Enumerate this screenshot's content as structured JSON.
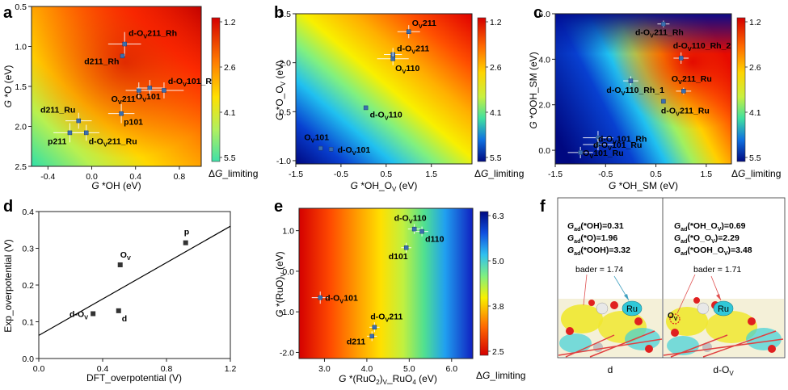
{
  "chart_data": [
    {
      "id": "a",
      "type": "scatter",
      "panel_label": "a",
      "xlabel": "G *OH (eV)",
      "ylabel": "G *O (eV)",
      "xlim": [
        -0.55,
        1.0
      ],
      "ylim": [
        2.5,
        0.5
      ],
      "xticks": [
        -0.4,
        0.0,
        0.4,
        0.8
      ],
      "xticklabels": [
        "-0.4",
        "0.0",
        "0.4",
        "0.8"
      ],
      "yticks": [
        0.5,
        1.0,
        1.5,
        2.0,
        2.5
      ],
      "yticklabels": [
        "0.5",
        "1.0",
        "1.5",
        "2.0",
        "2.5"
      ],
      "points": [
        {
          "label": "d-OV211_Rh",
          "text": "d-O",
          "sub": "V",
          "rest": "211_Rh",
          "x": 0.3,
          "y": 0.97,
          "xerr": 0.15,
          "yerr": 0.15
        },
        {
          "label": "d211_Rh",
          "text": "d211_Rh",
          "sub": "",
          "rest": "",
          "x": 0.28,
          "y": 1.12,
          "xerr": 0.0,
          "yerr": 0.0
        },
        {
          "label": "OV211",
          "text": "O",
          "sub": "V",
          "rest": "211",
          "x": 0.43,
          "y": 1.55,
          "xerr": 0.12,
          "yerr": 0.1
        },
        {
          "label": "OV101",
          "text": "O",
          "sub": "V",
          "rest": "101",
          "x": 0.53,
          "y": 1.52,
          "xerr": 0.12,
          "yerr": 0.1
        },
        {
          "label": "d-OV101_Ru",
          "text": "d-O",
          "sub": "V",
          "rest": "101_Ru",
          "x": 0.66,
          "y": 1.55,
          "xerr": 0.18,
          "yerr": 0.1
        },
        {
          "label": "d211_Ru",
          "text": "d211_Ru",
          "sub": "",
          "rest": "",
          "x": -0.12,
          "y": 1.93,
          "xerr": 0.12,
          "yerr": 0.1
        },
        {
          "label": "p101",
          "text": "p101",
          "sub": "",
          "rest": "",
          "x": 0.27,
          "y": 1.84,
          "xerr": 0.12,
          "yerr": 0.12
        },
        {
          "label": "p211",
          "text": "p211",
          "sub": "",
          "rest": "",
          "x": -0.2,
          "y": 2.08,
          "xerr": 0.15,
          "yerr": 0.12
        },
        {
          "label": "d-OV211_Ru",
          "text": "d-O",
          "sub": "V",
          "rest": "211_Ru",
          "x": -0.05,
          "y": 2.08,
          "xerr": 0.12,
          "yerr": 0.1
        }
      ],
      "colorbar_ticks": [
        "1.2",
        "2.6",
        "4.1",
        "5.5"
      ],
      "colorbar_label": "ΔG_limiting"
    },
    {
      "id": "b",
      "type": "scatter",
      "panel_label": "b",
      "xlabel": "G *OH_OV (eV)",
      "ylabel": "G *O_OV (eV)",
      "xlim": [
        -1.5,
        2.4
      ],
      "ylim": [
        -1.1,
        3.5
      ],
      "xticks": [
        -1.5,
        -0.5,
        0.5,
        1.5
      ],
      "xticklabels": [
        "-1.5",
        "-0.5",
        "0.5",
        "1.5"
      ],
      "yticks": [
        -1.0,
        0.5,
        2.0,
        3.5
      ],
      "yticklabels": [
        "-1.0",
        "0.5",
        "2.0",
        "3.5"
      ],
      "points": [
        {
          "label": "OV211",
          "text": "O",
          "sub": "V",
          "rest": "211",
          "x": 1.0,
          "y": 2.95,
          "xerr": 0.25,
          "yerr": 0.2
        },
        {
          "label": "d-OV211",
          "text": "d-O",
          "sub": "V",
          "rest": "211",
          "x": 0.65,
          "y": 2.25,
          "xerr": 0.2,
          "yerr": 0.2
        },
        {
          "label": "OV110",
          "text": "O",
          "sub": "V",
          "rest": "110",
          "x": 0.65,
          "y": 2.12,
          "xerr": 0.35,
          "yerr": 0.2
        },
        {
          "label": "d-OV110",
          "text": "d-O",
          "sub": "V",
          "rest": "110",
          "x": 0.05,
          "y": 0.62,
          "xerr": 0.0,
          "yerr": 0.0
        },
        {
          "label": "OV101",
          "text": "O",
          "sub": "V",
          "rest": "101",
          "x": -0.95,
          "y": -0.62,
          "xerr": 0.0,
          "yerr": 0.0
        },
        {
          "label": "d-OV101",
          "text": "d-O",
          "sub": "V",
          "rest": "101",
          "x": -0.72,
          "y": -0.65,
          "xerr": 0.0,
          "yerr": 0.0
        }
      ],
      "colorbar_ticks": [
        "1.2",
        "2.6",
        "4.1",
        "5.5"
      ],
      "colorbar_label": "ΔG_limiting"
    },
    {
      "id": "c",
      "type": "scatter",
      "panel_label": "c",
      "xlabel": "G *OH_SM (eV)",
      "ylabel": "G *OOH_SM (eV)",
      "xlim": [
        -1.5,
        2.0
      ],
      "ylim": [
        -0.6,
        6.0
      ],
      "xticks": [
        -1.5,
        -0.5,
        0.5,
        1.5
      ],
      "xticklabels": [
        "-1.5",
        "-0.5",
        "0.5",
        "1.5"
      ],
      "yticks": [
        0.0,
        2.0,
        4.0,
        6.0
      ],
      "yticklabels": [
        "0.0",
        "2.0",
        "4.0",
        "6.0"
      ],
      "points": [
        {
          "label": "d-OV211_Rh",
          "text": "d-O",
          "sub": "V",
          "rest": "211_Rh",
          "x": 0.65,
          "y": 5.55,
          "xerr": 0.12,
          "yerr": 0.15
        },
        {
          "label": "d-OV110_Rh_2",
          "text": "d-O",
          "sub": "V",
          "rest": "110_Rh_2",
          "x": 1.0,
          "y": 4.05,
          "xerr": 0.15,
          "yerr": 0.25
        },
        {
          "label": "d-OV110_Rh_1",
          "text": "d-O",
          "sub": "V",
          "rest": "110_Rh_1",
          "x": 0.0,
          "y": 3.05,
          "xerr": 0.15,
          "yerr": 0.2
        },
        {
          "label": "OV211_Ru",
          "text": "O",
          "sub": "V",
          "rest": "211_Ru",
          "x": 1.05,
          "y": 2.6,
          "xerr": 0.15,
          "yerr": 0.15
        },
        {
          "label": "d-OV211_Ru",
          "text": "d-O",
          "sub": "V",
          "rest": "211_Ru",
          "x": 0.65,
          "y": 2.15,
          "xerr": 0.0,
          "yerr": 0.0
        },
        {
          "label": "d-OV101_Rh",
          "text": "d-O",
          "sub": "V",
          "rest": "101_Rh",
          "x": -0.65,
          "y": 0.55,
          "xerr": 0.3,
          "yerr": 0.3
        },
        {
          "label": "d-OV101_Ru",
          "text": "d-O",
          "sub": "V",
          "rest": "101_Ru",
          "x": -0.65,
          "y": 0.25,
          "xerr": 0.3,
          "yerr": 0.25
        },
        {
          "label": "OV101_Ru",
          "text": "O",
          "sub": "V",
          "rest": "101_Ru",
          "x": -1.0,
          "y": -0.1,
          "xerr": 0.25,
          "yerr": 0.25
        }
      ],
      "colorbar_ticks": [
        "1.2",
        "2.6",
        "4.1",
        "5.5"
      ],
      "colorbar_label": "ΔG_limiting"
    },
    {
      "id": "d",
      "type": "scatter",
      "panel_label": "d",
      "xlabel": "DFT_overpotential (V)",
      "ylabel": "Exp_overpotential (V)",
      "xlim": [
        0.0,
        1.2
      ],
      "ylim": [
        0.0,
        0.4
      ],
      "xticks": [
        0.0,
        0.4,
        0.8,
        1.2
      ],
      "xticklabels": [
        "0.0",
        "0.4",
        "0.8",
        "1.2"
      ],
      "yticks": [
        0.0,
        0.1,
        0.2,
        0.3,
        0.4
      ],
      "yticklabels": [
        "0.0",
        "0.1",
        "0.2",
        "0.3",
        "0.4"
      ],
      "points": [
        {
          "label": "p",
          "text": "p",
          "sub": "",
          "rest": "",
          "x": 0.92,
          "y": 0.315
        },
        {
          "label": "OV",
          "text": "O",
          "sub": "V",
          "rest": "",
          "x": 0.51,
          "y": 0.255
        },
        {
          "label": "d",
          "text": "d",
          "sub": "",
          "rest": "",
          "x": 0.5,
          "y": 0.13
        },
        {
          "label": "d-OV",
          "text": "d-O",
          "sub": "V",
          "rest": "",
          "x": 0.34,
          "y": 0.122
        }
      ],
      "fit_line": {
        "x": [
          0.0,
          1.2
        ],
        "y": [
          0.063,
          0.36
        ]
      }
    },
    {
      "id": "e",
      "type": "scatter",
      "panel_label": "e",
      "xlabel": "G *(RuO2)V_RuO4 (eV)",
      "ylabel": "G *(RuO)V (eV)",
      "xlim": [
        2.4,
        6.5
      ],
      "ylim": [
        -2.15,
        1.55
      ],
      "xticks": [
        3.0,
        4.0,
        5.0,
        6.0
      ],
      "xticklabels": [
        "3.0",
        "4.0",
        "5.0",
        "6.0"
      ],
      "yticks": [
        -2.0,
        -1.0,
        0.0,
        1.0
      ],
      "yticklabels": [
        "-2.0",
        "-1.0",
        "0.0",
        "1.0"
      ],
      "points": [
        {
          "label": "d-OV110",
          "text": "d-O",
          "sub": "V",
          "rest": "110",
          "x": 5.12,
          "y": 1.04,
          "xerr": 0.15,
          "yerr": 0.12
        },
        {
          "label": "d110",
          "text": "d110",
          "sub": "",
          "rest": "",
          "x": 5.3,
          "y": 0.98,
          "xerr": 0.15,
          "yerr": 0.12
        },
        {
          "label": "d101",
          "text": "d101",
          "sub": "",
          "rest": "",
          "x": 4.93,
          "y": 0.58,
          "xerr": 0.12,
          "yerr": 0.12
        },
        {
          "label": "d-OV101",
          "text": "d-O",
          "sub": "V",
          "rest": "101",
          "x": 2.9,
          "y": -0.65,
          "xerr": 0.2,
          "yerr": 0.15
        },
        {
          "label": "d-OV211",
          "text": "d-O",
          "sub": "V",
          "rest": "211",
          "x": 4.18,
          "y": -1.38,
          "xerr": 0.12,
          "yerr": 0.12
        },
        {
          "label": "d211",
          "text": "d211",
          "sub": "",
          "rest": "",
          "x": 4.12,
          "y": -1.6,
          "xerr": 0.12,
          "yerr": 0.12
        }
      ],
      "colorbar_ticks": [
        "6.3",
        "5.0",
        "3.8",
        "2.5"
      ],
      "colorbar_label": "ΔG_limiting"
    }
  ],
  "panel_f": {
    "panel_label": "f",
    "left": {
      "lines": [
        "Gad(*OH)=0.31",
        "Gad(*O)=1.96",
        "Gad(*OOH)=3.32"
      ],
      "bader": "bader = 1.74",
      "atom": "Ru",
      "caption": "d"
    },
    "right": {
      "lines": [
        "Gad(*OH_OV)=0.69",
        "Gad(*O_OV)=2.29",
        "Gad(*OOH_OV)=3.48"
      ],
      "bader": "bader = 1.71",
      "atom": "Ru",
      "vacancy": "OV",
      "caption": "d-OV"
    }
  }
}
